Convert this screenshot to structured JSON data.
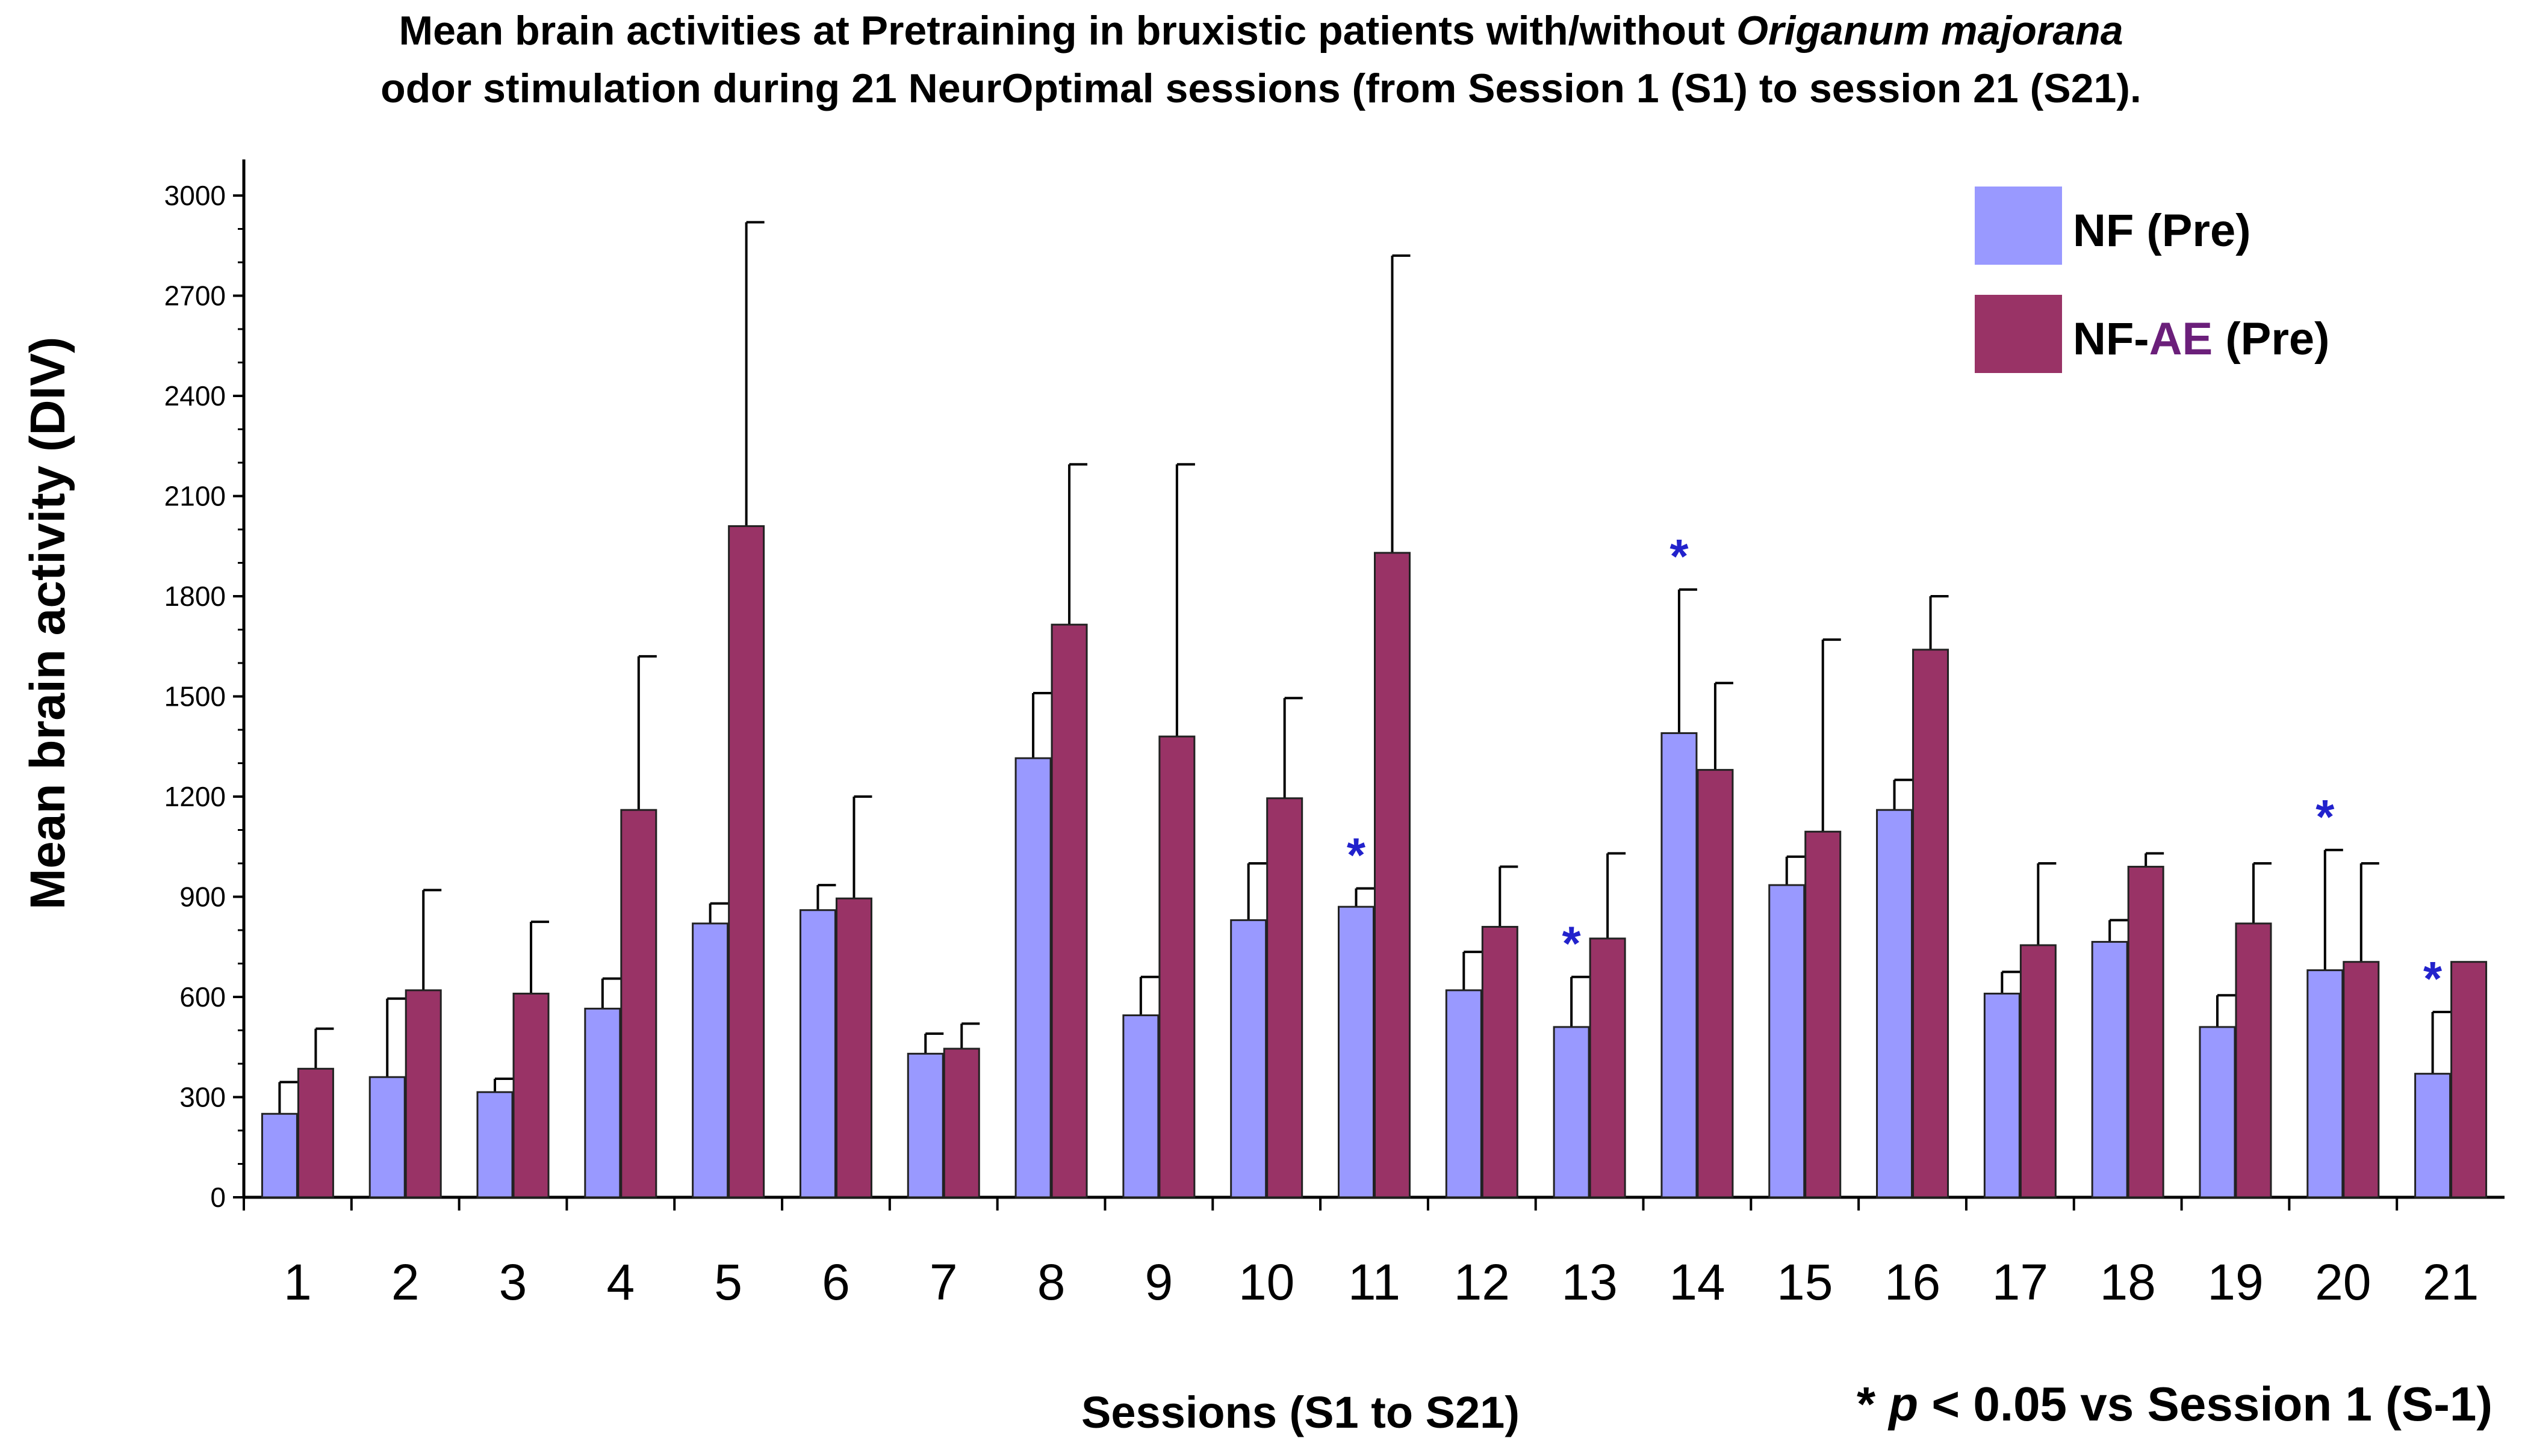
{
  "chart_data": {
    "type": "bar",
    "title_line1_pre": "Mean brain activities at Pretraining in bruxistic patients with/without ",
    "title_line1_italic": "Origanum majorana",
    "title_line2": "odor stimulation during 21 NeurOptimal sessions (from Session 1 (S1) to session 21 (S21).",
    "ylabel": "Mean brain activity (DIV)",
    "xlabel": "Sessions (S1 to S21)",
    "ylim": [
      0,
      3000
    ],
    "yticks": [
      "0",
      "300",
      "600",
      "900",
      "1200",
      "1500",
      "1800",
      "2100",
      "2400",
      "2700",
      "3000"
    ],
    "categories": [
      "1",
      "2",
      "3",
      "4",
      "5",
      "6",
      "7",
      "8",
      "9",
      "10",
      "11",
      "12",
      "13",
      "14",
      "15",
      "16",
      "17",
      "18",
      "19",
      "20",
      "21"
    ],
    "series": [
      {
        "name": "NF (Pre)",
        "color": "#9999ff",
        "values": [
          250,
          360,
          315,
          565,
          820,
          860,
          430,
          1315,
          545,
          830,
          870,
          620,
          510,
          1390,
          935,
          1160,
          610,
          765,
          510,
          680,
          370
        ],
        "errors": [
          95,
          235,
          40,
          90,
          60,
          75,
          60,
          195,
          115,
          170,
          55,
          115,
          150,
          430,
          85,
          90,
          65,
          65,
          95,
          360,
          185
        ]
      },
      {
        "name": "NF-AE (Pre)",
        "color": "#993366",
        "values": [
          385,
          620,
          610,
          1160,
          2010,
          895,
          445,
          1715,
          1380,
          1195,
          1930,
          810,
          775,
          1280,
          1095,
          1640,
          755,
          990,
          820,
          705,
          705
        ],
        "errors": [
          120,
          300,
          215,
          460,
          910,
          305,
          75,
          480,
          815,
          300,
          890,
          180,
          255,
          260,
          575,
          160,
          245,
          40,
          180,
          295,
          0
        ]
      }
    ],
    "significant_sessions": [
      "11",
      "13",
      "14",
      "20",
      "21"
    ],
    "significance_marker": "*",
    "significance_color": "#2222cc",
    "legend_labels": {
      "nf": "NF (Pre)",
      "nfae_prefix": "NF-",
      "nfae_ae": "AE",
      "nfae_suffix": " (Pre)",
      "ae_color": "#6b1f7a"
    },
    "footnote_star": "* ",
    "footnote_p": "p",
    "footnote_rest": " < 0.05 vs Session 1 (S-1)",
    "legend_position": "top-right",
    "grid": false
  }
}
